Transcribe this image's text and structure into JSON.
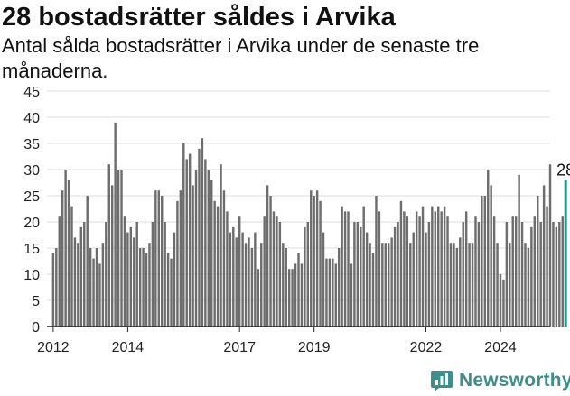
{
  "header": {
    "title": "28 bostadsrätter såldes i Arvika",
    "subtitle": "Antal sålda bostadsrätter i Arvika under de senaste tre månaderna."
  },
  "brand": {
    "name": "Newsworthy",
    "color": "#3c8f8a"
  },
  "colors": {
    "bar": "#6d6d6d",
    "highlight": "#1a9e93",
    "grid": "#dddddd",
    "axis": "#222222"
  },
  "chart_data": {
    "type": "bar",
    "title": "28 bostadsrätter såldes i Arvika",
    "subtitle": "Antal sålda bostadsrätter i Arvika under de senaste tre månaderna.",
    "ylim": [
      0,
      45
    ],
    "yticks": [
      0,
      5,
      10,
      15,
      20,
      25,
      30,
      35,
      40,
      45
    ],
    "xlim": [
      "2011-11",
      "2025-05"
    ],
    "xticks": [
      {
        "label": "2012",
        "date": "2012-01"
      },
      {
        "label": "2014",
        "date": "2014-01"
      },
      {
        "label": "2017",
        "date": "2017-01"
      },
      {
        "label": "2019",
        "date": "2019-01"
      },
      {
        "label": "2022",
        "date": "2022-01"
      },
      {
        "label": "2024",
        "date": "2024-01"
      }
    ],
    "grid": true,
    "start": "2012-01",
    "values": [
      14,
      15,
      21,
      26,
      30,
      28,
      23,
      17,
      16,
      19,
      20,
      25,
      15,
      13,
      15,
      12,
      16,
      20,
      31,
      27,
      39,
      30,
      30,
      21,
      18,
      19,
      17,
      20,
      15,
      15,
      14,
      16,
      20,
      26,
      26,
      25,
      20,
      14,
      13,
      18,
      24,
      26,
      35,
      32,
      33,
      27,
      30,
      34,
      36,
      32,
      30,
      28,
      24,
      23,
      31,
      26,
      22,
      18,
      19,
      17,
      21,
      18,
      16,
      17,
      15,
      18,
      11,
      16,
      21,
      27,
      25,
      22,
      21,
      20,
      16,
      15,
      11,
      11,
      12,
      14,
      12,
      19,
      20,
      26,
      25,
      26,
      24,
      18,
      13,
      13,
      13,
      12,
      15,
      23,
      22,
      22,
      12,
      20,
      20,
      19,
      23,
      18,
      16,
      14,
      25,
      22,
      16,
      16,
      16,
      17,
      19,
      20,
      24,
      22,
      21,
      16,
      18,
      22,
      21,
      23,
      18,
      20,
      23,
      22,
      23,
      22,
      23,
      21,
      16,
      16,
      15,
      17,
      20,
      22,
      16,
      16,
      21,
      20,
      25,
      25,
      30,
      27,
      21,
      16,
      10,
      9,
      20,
      16,
      21,
      21,
      29,
      20,
      16,
      15,
      19,
      21,
      25,
      20,
      27,
      23,
      31,
      20,
      19,
      20,
      21,
      28
    ],
    "highlight_last": true,
    "last_value": 28,
    "last_label": "28"
  }
}
